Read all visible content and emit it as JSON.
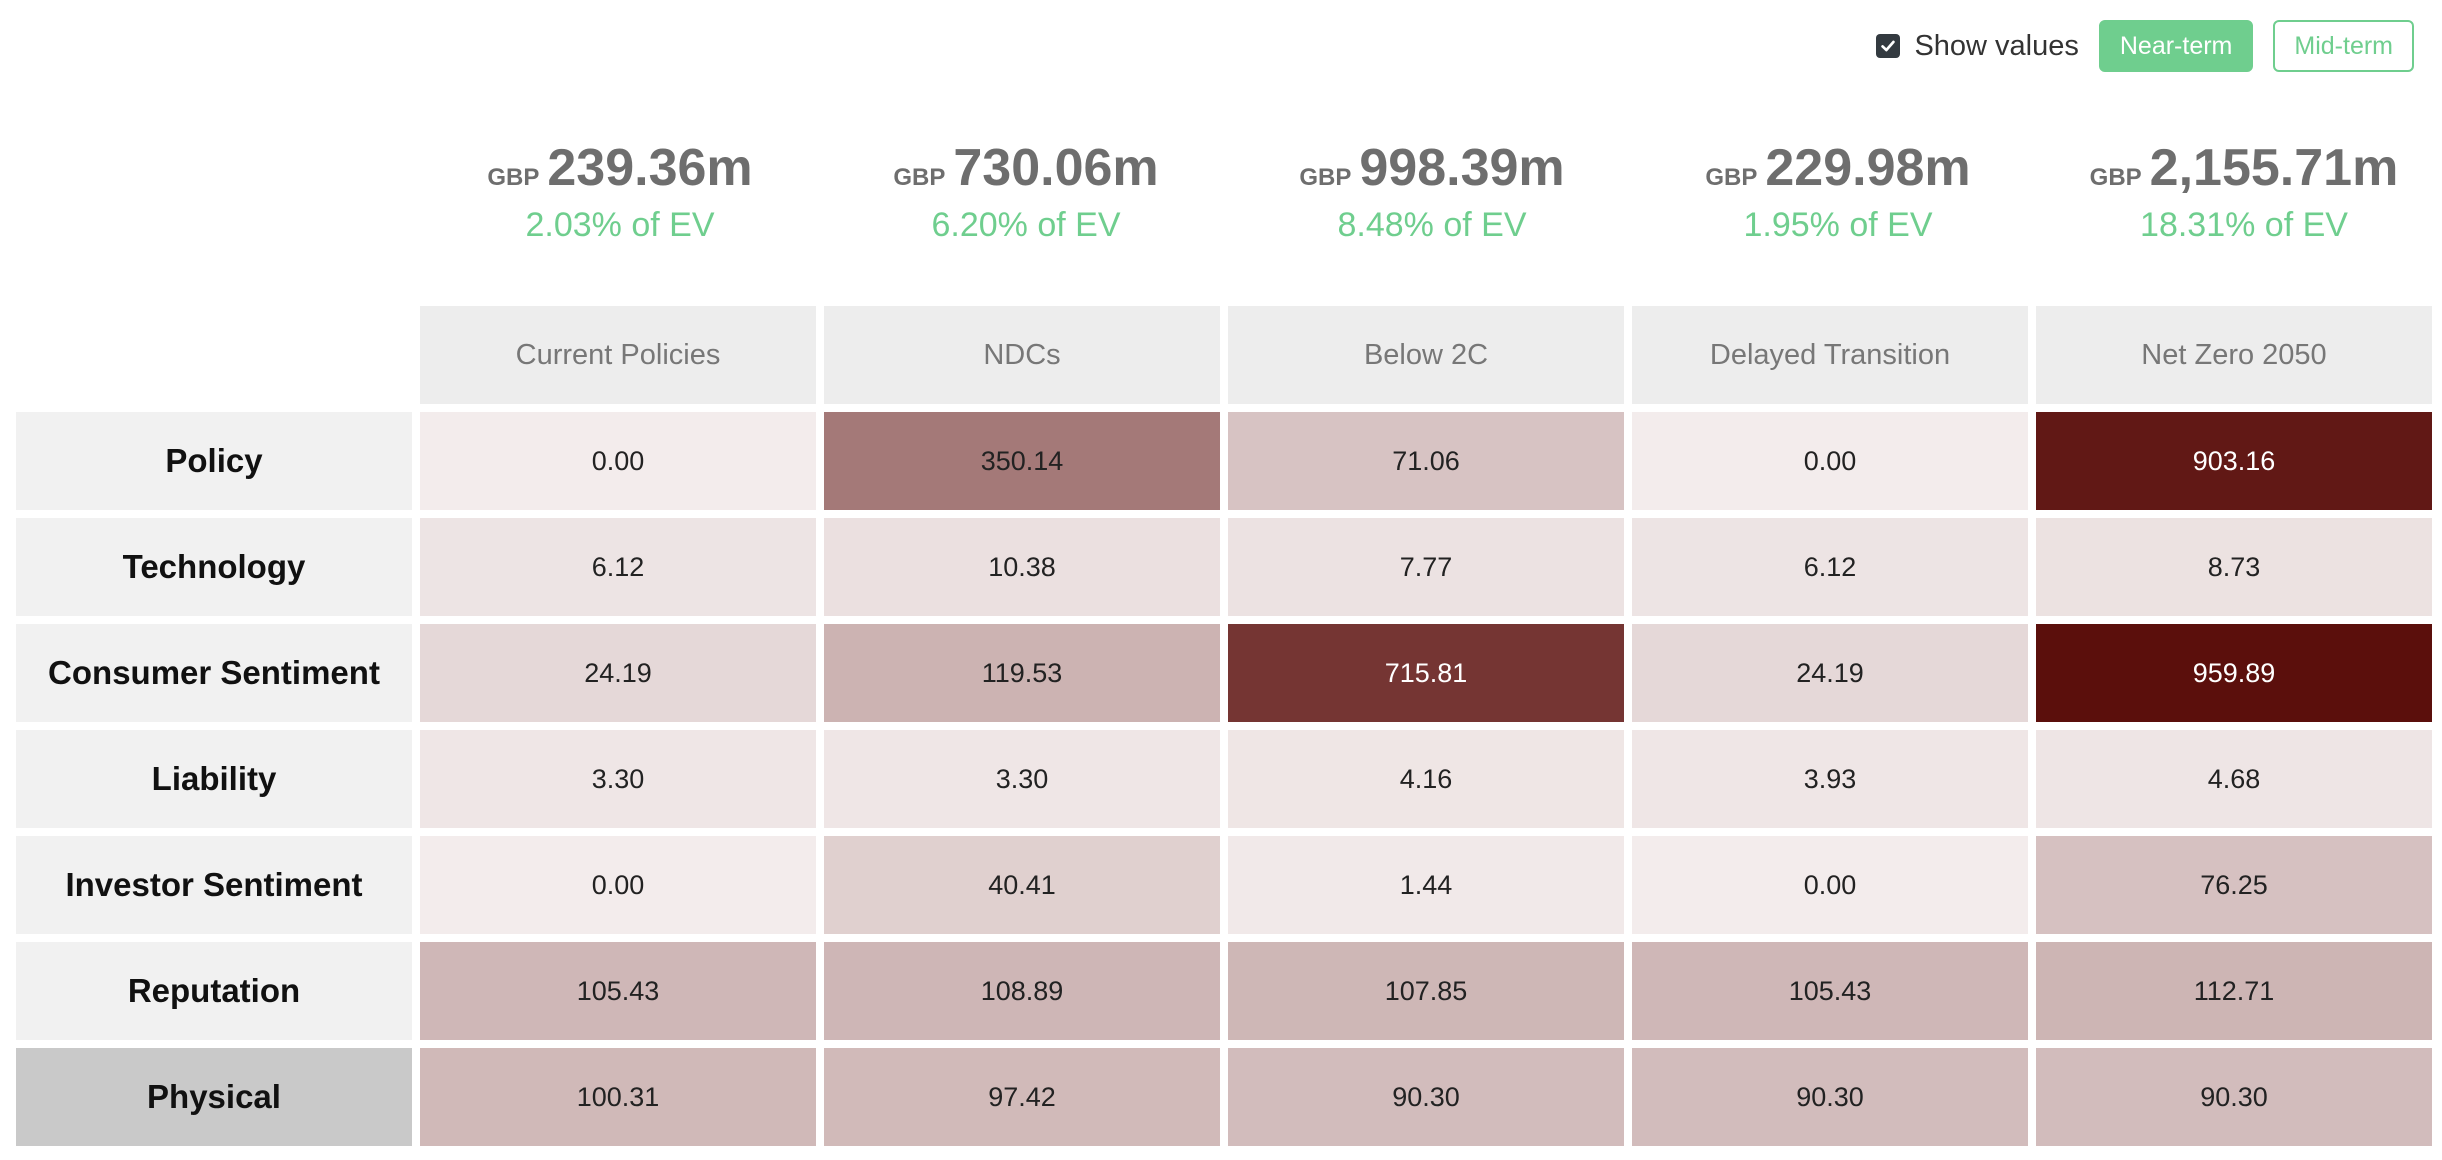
{
  "controls": {
    "show_values_label": "Show values",
    "show_values_checked": true,
    "near_term_label": "Near-term",
    "mid_term_label": "Mid-term",
    "active_horizon": "Near-term"
  },
  "colors": {
    "accent": "#6fce8e",
    "heat_low": "#f3ecec",
    "heat_high": "#5b0f0c"
  },
  "totals": [
    {
      "currency": "GBP",
      "amount": "239.36m",
      "pct": "2.03% of EV"
    },
    {
      "currency": "GBP",
      "amount": "730.06m",
      "pct": "6.20% of EV"
    },
    {
      "currency": "GBP",
      "amount": "998.39m",
      "pct": "8.48% of EV"
    },
    {
      "currency": "GBP",
      "amount": "229.98m",
      "pct": "1.95% of EV"
    },
    {
      "currency": "GBP",
      "amount": "2,155.71m",
      "pct": "18.31% of EV"
    }
  ],
  "chart_data": {
    "type": "heatmap",
    "columns": [
      "Current Policies",
      "NDCs",
      "Below 2C",
      "Delayed Transition",
      "Net Zero 2050"
    ],
    "rows": [
      "Policy",
      "Technology",
      "Consumer Sentiment",
      "Liability",
      "Investor Sentiment",
      "Reputation",
      "Physical"
    ],
    "active_row": "Physical",
    "values": [
      [
        "0.00",
        "350.14",
        "71.06",
        "0.00",
        "903.16"
      ],
      [
        "6.12",
        "10.38",
        "7.77",
        "6.12",
        "8.73"
      ],
      [
        "24.19",
        "119.53",
        "715.81",
        "24.19",
        "959.89"
      ],
      [
        "3.30",
        "3.30",
        "4.16",
        "3.93",
        "4.68"
      ],
      [
        "0.00",
        "40.41",
        "1.44",
        "0.00",
        "76.25"
      ],
      [
        "105.43",
        "108.89",
        "107.85",
        "105.43",
        "112.71"
      ],
      [
        "100.31",
        "97.42",
        "90.30",
        "90.30",
        "90.30"
      ]
    ]
  }
}
